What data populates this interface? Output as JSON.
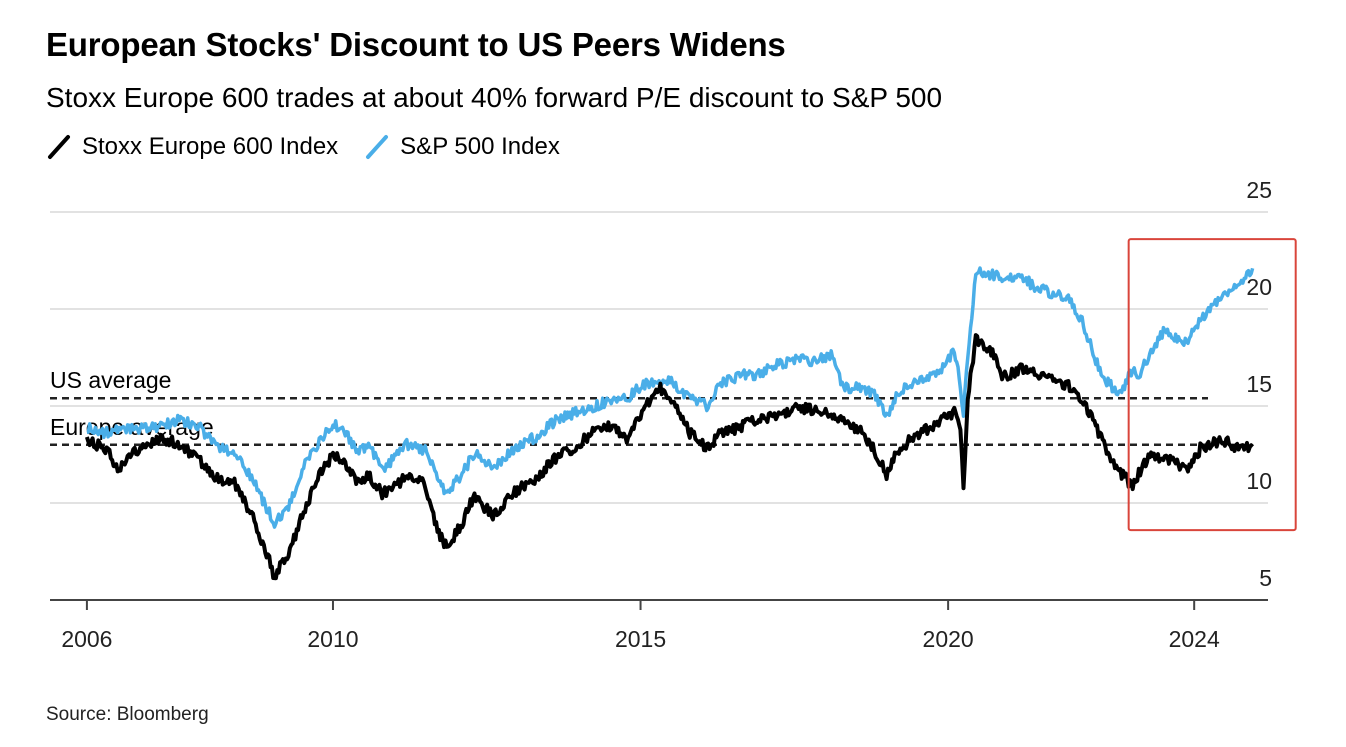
{
  "title": "European Stocks' Discount to US Peers Widens",
  "subtitle": "Stoxx Europe 600 trades at about 40% forward P/E discount to S&P 500",
  "source": "Source: Bloomberg",
  "colors": {
    "europe": "#000000",
    "us": "#4aaee8",
    "grid": "#d9d9d9",
    "highlight": "#d9453b"
  },
  "chart_data": {
    "type": "line",
    "title": "European Stocks' Discount to US Peers Widens",
    "subtitle": "Stoxx Europe 600 trades at about 40% forward P/E discount to S&P 500",
    "xlabel": "",
    "ylabel": "",
    "xlim": [
      2005.4,
      2025.2
    ],
    "ylim": [
      5,
      25
    ],
    "yticks": [
      5,
      10,
      15,
      20,
      25
    ],
    "xticks": [
      2006,
      2010,
      2015,
      2020,
      2024
    ],
    "grid": true,
    "legend": "top-left",
    "series": [
      {
        "name": "Stoxx Europe 600 Index",
        "color": "#000000",
        "points": [
          [
            2006.0,
            13.2
          ],
          [
            2006.3,
            12.8
          ],
          [
            2006.5,
            11.8
          ],
          [
            2006.8,
            12.7
          ],
          [
            2007.2,
            13.4
          ],
          [
            2007.5,
            13.0
          ],
          [
            2007.8,
            12.3
          ],
          [
            2008.1,
            11.3
          ],
          [
            2008.4,
            11.0
          ],
          [
            2008.7,
            9.2
          ],
          [
            2008.9,
            7.6
          ],
          [
            2009.05,
            6.2
          ],
          [
            2009.3,
            7.5
          ],
          [
            2009.5,
            9.4
          ],
          [
            2009.8,
            11.6
          ],
          [
            2010.0,
            12.4
          ],
          [
            2010.2,
            12.1
          ],
          [
            2010.4,
            11.0
          ],
          [
            2010.6,
            11.4
          ],
          [
            2010.8,
            10.5
          ],
          [
            2011.0,
            10.9
          ],
          [
            2011.2,
            11.3
          ],
          [
            2011.5,
            11.0
          ],
          [
            2011.7,
            8.6
          ],
          [
            2011.85,
            7.7
          ],
          [
            2012.1,
            9.0
          ],
          [
            2012.3,
            10.4
          ],
          [
            2012.6,
            9.3
          ],
          [
            2012.8,
            10.0
          ],
          [
            2013.0,
            10.7
          ],
          [
            2013.3,
            11.2
          ],
          [
            2013.6,
            12.3
          ],
          [
            2013.9,
            12.8
          ],
          [
            2014.2,
            13.6
          ],
          [
            2014.5,
            14.0
          ],
          [
            2014.8,
            13.3
          ],
          [
            2015.0,
            14.6
          ],
          [
            2015.3,
            16.0
          ],
          [
            2015.5,
            15.4
          ],
          [
            2015.8,
            13.6
          ],
          [
            2016.1,
            12.8
          ],
          [
            2016.3,
            13.6
          ],
          [
            2016.6,
            13.9
          ],
          [
            2016.9,
            14.3
          ],
          [
            2017.2,
            14.5
          ],
          [
            2017.5,
            14.9
          ],
          [
            2017.8,
            14.8
          ],
          [
            2018.1,
            14.6
          ],
          [
            2018.3,
            14.2
          ],
          [
            2018.6,
            13.7
          ],
          [
            2018.8,
            12.7
          ],
          [
            2019.0,
            11.5
          ],
          [
            2019.2,
            12.8
          ],
          [
            2019.5,
            13.5
          ],
          [
            2019.8,
            14.1
          ],
          [
            2020.1,
            14.7
          ],
          [
            2020.2,
            13.6
          ],
          [
            2020.25,
            10.8
          ],
          [
            2020.32,
            15.5
          ],
          [
            2020.45,
            18.5
          ],
          [
            2020.7,
            17.8
          ],
          [
            2020.9,
            16.5
          ],
          [
            2021.2,
            16.9
          ],
          [
            2021.5,
            16.6
          ],
          [
            2021.8,
            16.1
          ],
          [
            2022.0,
            16.0
          ],
          [
            2022.2,
            15.1
          ],
          [
            2022.4,
            14.0
          ],
          [
            2022.6,
            12.5
          ],
          [
            2022.8,
            11.6
          ],
          [
            2023.0,
            10.8
          ],
          [
            2023.1,
            11.5
          ],
          [
            2023.3,
            12.6
          ],
          [
            2023.5,
            12.3
          ],
          [
            2023.7,
            12.1
          ],
          [
            2023.9,
            11.6
          ],
          [
            2024.1,
            12.8
          ],
          [
            2024.3,
            13.1
          ],
          [
            2024.5,
            13.2
          ],
          [
            2024.7,
            12.8
          ],
          [
            2024.95,
            12.9
          ]
        ]
      },
      {
        "name": "S&P 500 Index",
        "color": "#4aaee8",
        "points": [
          [
            2006.0,
            13.9
          ],
          [
            2006.3,
            13.6
          ],
          [
            2006.5,
            13.9
          ],
          [
            2006.8,
            13.8
          ],
          [
            2007.2,
            14.0
          ],
          [
            2007.5,
            14.3
          ],
          [
            2007.8,
            14.0
          ],
          [
            2008.1,
            13.0
          ],
          [
            2008.4,
            12.6
          ],
          [
            2008.7,
            11.2
          ],
          [
            2008.9,
            9.9
          ],
          [
            2009.05,
            9.0
          ],
          [
            2009.3,
            9.9
          ],
          [
            2009.5,
            11.8
          ],
          [
            2009.8,
            13.3
          ],
          [
            2010.0,
            14.1
          ],
          [
            2010.2,
            13.7
          ],
          [
            2010.4,
            12.6
          ],
          [
            2010.6,
            12.9
          ],
          [
            2010.8,
            11.6
          ],
          [
            2011.0,
            12.4
          ],
          [
            2011.2,
            13.0
          ],
          [
            2011.5,
            12.7
          ],
          [
            2011.7,
            11.3
          ],
          [
            2011.85,
            10.5
          ],
          [
            2012.1,
            11.5
          ],
          [
            2012.3,
            12.6
          ],
          [
            2012.6,
            11.8
          ],
          [
            2012.8,
            12.4
          ],
          [
            2013.0,
            12.9
          ],
          [
            2013.3,
            13.4
          ],
          [
            2013.6,
            14.2
          ],
          [
            2013.9,
            14.6
          ],
          [
            2014.2,
            14.9
          ],
          [
            2014.5,
            15.3
          ],
          [
            2014.8,
            15.4
          ],
          [
            2015.0,
            16.0
          ],
          [
            2015.3,
            16.4
          ],
          [
            2015.5,
            16.2
          ],
          [
            2015.8,
            15.4
          ],
          [
            2016.1,
            15.0
          ],
          [
            2016.3,
            16.1
          ],
          [
            2016.6,
            16.6
          ],
          [
            2016.9,
            16.6
          ],
          [
            2017.2,
            17.1
          ],
          [
            2017.5,
            17.4
          ],
          [
            2017.8,
            17.3
          ],
          [
            2018.1,
            17.6
          ],
          [
            2018.3,
            16.0
          ],
          [
            2018.6,
            15.9
          ],
          [
            2018.8,
            15.7
          ],
          [
            2019.0,
            14.4
          ],
          [
            2019.2,
            15.8
          ],
          [
            2019.5,
            16.3
          ],
          [
            2019.8,
            16.6
          ],
          [
            2020.1,
            17.8
          ],
          [
            2020.2,
            16.1
          ],
          [
            2020.25,
            14.6
          ],
          [
            2020.32,
            17.5
          ],
          [
            2020.45,
            21.9
          ],
          [
            2020.7,
            21.8
          ],
          [
            2020.9,
            21.5
          ],
          [
            2021.2,
            21.6
          ],
          [
            2021.5,
            21.0
          ],
          [
            2021.8,
            20.7
          ],
          [
            2022.0,
            20.4
          ],
          [
            2022.2,
            19.2
          ],
          [
            2022.4,
            17.3
          ],
          [
            2022.6,
            16.2
          ],
          [
            2022.8,
            15.6
          ],
          [
            2023.0,
            16.9
          ],
          [
            2023.1,
            16.6
          ],
          [
            2023.3,
            17.7
          ],
          [
            2023.5,
            18.9
          ],
          [
            2023.7,
            18.5
          ],
          [
            2023.9,
            18.3
          ],
          [
            2024.1,
            19.5
          ],
          [
            2024.3,
            20.1
          ],
          [
            2024.5,
            20.9
          ],
          [
            2024.7,
            21.2
          ],
          [
            2024.95,
            22.1
          ]
        ]
      }
    ],
    "reference_lines": [
      {
        "label": "US average",
        "value": 15.4
      },
      {
        "label": "Europe average",
        "value": 13.0
      }
    ],
    "highlight_range": {
      "x": [
        2023.0,
        2025.0
      ],
      "y": [
        8.6,
        23.6
      ]
    }
  }
}
